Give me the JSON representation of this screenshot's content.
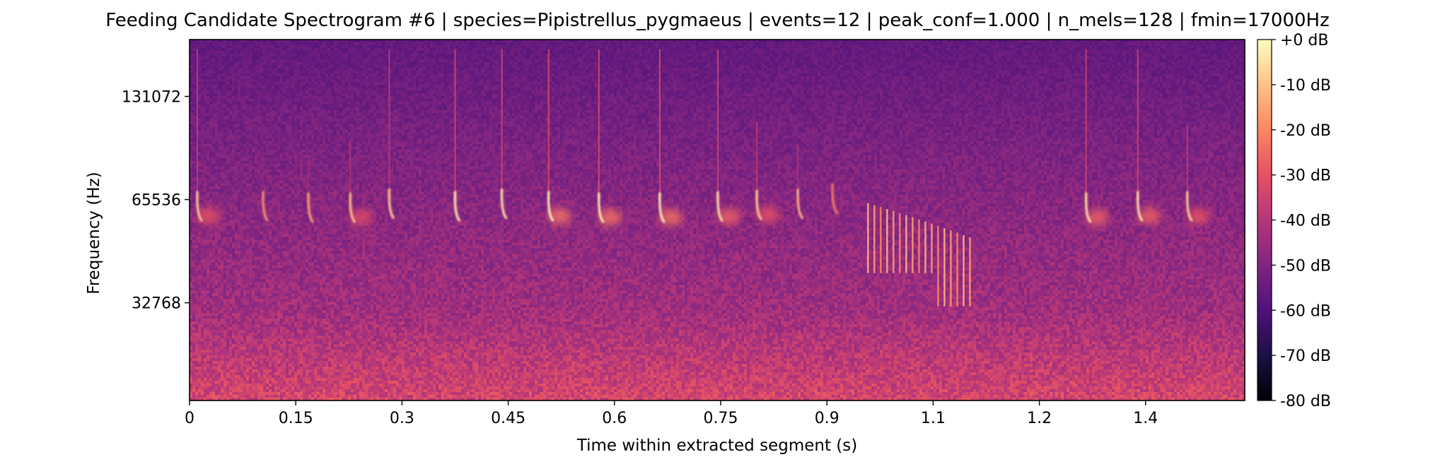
{
  "chart_data": {
    "type": "heatmap",
    "title": "Feeding Candidate Spectrogram #6 | species=Pipistrellus_pygmaeus | events=12 | peak_conf=1.000 | n_mels=128 | fmin=17000Hz",
    "xlabel": "Time within extracted segment (s)",
    "ylabel": "Frequency (Hz)",
    "xlim": [
      0,
      1.49
    ],
    "ylim_hz": [
      17000,
      192000
    ],
    "y_scale": "log",
    "x_ticks": [
      {
        "value": 0,
        "label": "0"
      },
      {
        "value": 0.15,
        "label": "0.15"
      },
      {
        "value": 0.3,
        "label": "0.3"
      },
      {
        "value": 0.45,
        "label": "0.45"
      },
      {
        "value": 0.6,
        "label": "0.6"
      },
      {
        "value": 0.75,
        "label": "0.75"
      },
      {
        "value": 0.9,
        "label": "0.9"
      },
      {
        "value": 1.05,
        "label": "1.1"
      },
      {
        "value": 1.2,
        "label": "1.2"
      },
      {
        "value": 1.35,
        "label": "1.4"
      }
    ],
    "y_ticks": [
      {
        "value": 32768,
        "label": "32768"
      },
      {
        "value": 65536,
        "label": "65536"
      },
      {
        "value": 131072,
        "label": "131072"
      }
    ],
    "colorbar": {
      "colormap": "magma",
      "range_db": [
        -80,
        0
      ],
      "ticks": [
        {
          "value": 0,
          "label": "+0 dB"
        },
        {
          "value": -10,
          "label": "-10 dB"
        },
        {
          "value": -20,
          "label": "-20 dB"
        },
        {
          "value": -30,
          "label": "-30 dB"
        },
        {
          "value": -40,
          "label": "-40 dB"
        },
        {
          "value": -50,
          "label": "-50 dB"
        },
        {
          "value": -60,
          "label": "-60 dB"
        },
        {
          "value": -70,
          "label": "-70 dB"
        },
        {
          "value": -80,
          "label": "-80 dB"
        }
      ]
    },
    "calls": [
      {
        "t": 0.011,
        "f_start_hz": 180000,
        "f_end_hz": 57000,
        "peak_db": -8,
        "echo": true
      },
      {
        "t": 0.104,
        "f_start_hz": 90000,
        "f_end_hz": 57000,
        "peak_db": -18,
        "echo": false
      },
      {
        "t": 0.168,
        "f_start_hz": 88000,
        "f_end_hz": 56500,
        "peak_db": -15,
        "echo": false
      },
      {
        "t": 0.227,
        "f_start_hz": 98000,
        "f_end_hz": 56500,
        "peak_db": -10,
        "echo": true
      },
      {
        "t": 0.282,
        "f_start_hz": 180000,
        "f_end_hz": 58000,
        "peak_db": -8,
        "echo": false
      },
      {
        "t": 0.375,
        "f_start_hz": 180000,
        "f_end_hz": 57000,
        "peak_db": -3,
        "echo": false
      },
      {
        "t": 0.441,
        "f_start_hz": 180000,
        "f_end_hz": 58000,
        "peak_db": -4,
        "echo": false
      },
      {
        "t": 0.507,
        "f_start_hz": 180000,
        "f_end_hz": 57000,
        "peak_db": -2,
        "echo": true
      },
      {
        "t": 0.578,
        "f_start_hz": 180000,
        "f_end_hz": 56500,
        "peak_db": -2,
        "echo": true
      },
      {
        "t": 0.664,
        "f_start_hz": 180000,
        "f_end_hz": 56500,
        "peak_db": -2,
        "echo": true
      },
      {
        "t": 0.746,
        "f_start_hz": 180000,
        "f_end_hz": 57000,
        "peak_db": -5,
        "echo": true
      },
      {
        "t": 0.801,
        "f_start_hz": 110000,
        "f_end_hz": 57500,
        "peak_db": -8,
        "echo": true
      },
      {
        "t": 0.859,
        "f_start_hz": 95000,
        "f_end_hz": 58000,
        "peak_db": -12,
        "echo": false
      },
      {
        "t": 0.908,
        "f_start_hz": 90000,
        "f_end_hz": 60000,
        "peak_db": -22,
        "echo": false
      },
      {
        "t": 1.266,
        "f_start_hz": 180000,
        "f_end_hz": 56500,
        "peak_db": -5,
        "echo": true
      },
      {
        "t": 1.339,
        "f_start_hz": 180000,
        "f_end_hz": 57000,
        "peak_db": -5,
        "echo": true
      },
      {
        "t": 1.409,
        "f_start_hz": 108000,
        "f_end_hz": 57000,
        "peak_db": -8,
        "echo": true
      }
    ],
    "buzz": {
      "t_start": 0.958,
      "t_end": 1.102,
      "n_pulses": 17,
      "f_high_hz": 64000,
      "f_low_hz": 40000,
      "peak_db": -12
    }
  }
}
